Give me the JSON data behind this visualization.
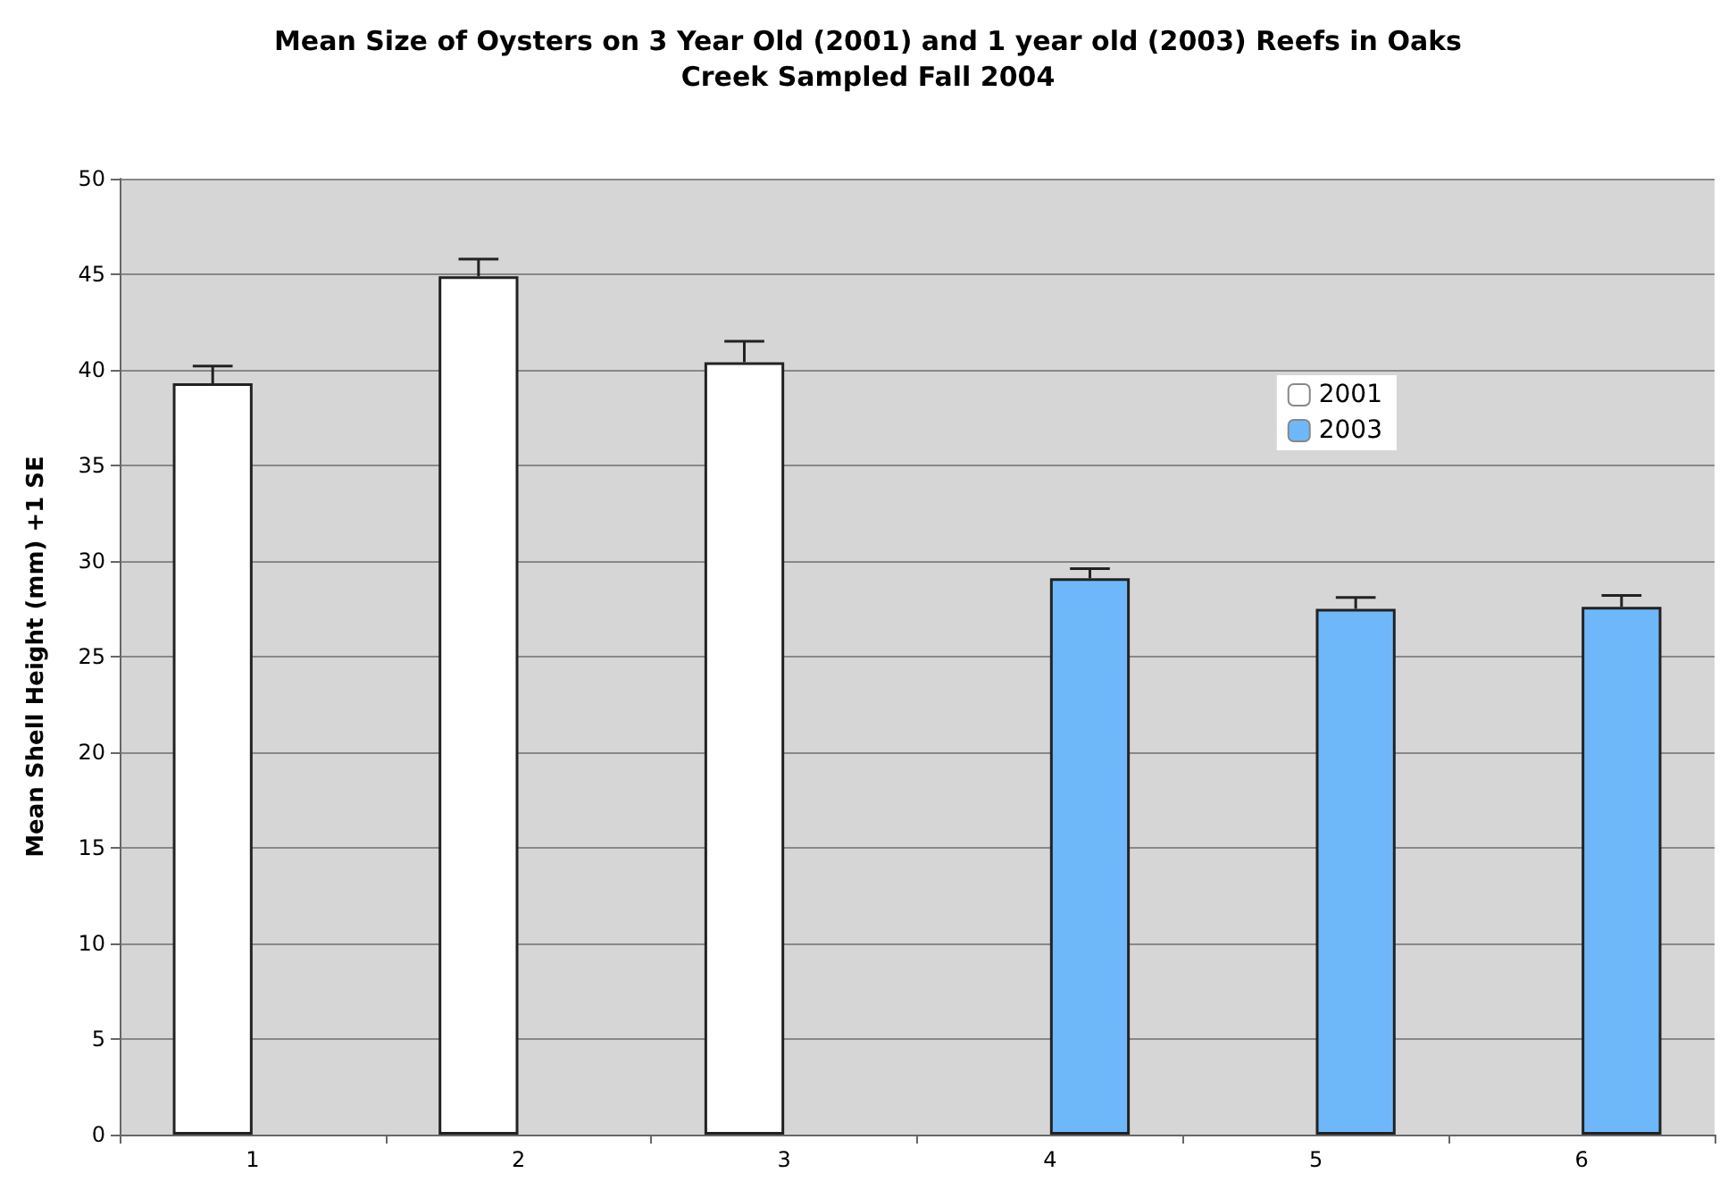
{
  "chart_data": {
    "type": "bar",
    "title": "Mean Size of Oysters on 3 Year Old (2001) and 1 year old (2003) Reefs in Oaks\nCreek Sampled Fall 2004",
    "ylabel": "Mean Shell Height (mm) +1 SE",
    "categories": [
      "1",
      "2",
      "3",
      "4",
      "5",
      "6"
    ],
    "series": [
      {
        "name": "2001",
        "color": "#ffffff",
        "values": [
          39.3,
          44.9,
          40.4,
          null,
          null,
          null
        ],
        "errors": [
          [
            39.3,
            40.2
          ],
          [
            44.9,
            45.8
          ],
          [
            40.4,
            41.5
          ],
          null,
          null,
          null
        ]
      },
      {
        "name": "2003",
        "color": "#6eb8fa",
        "values": [
          null,
          null,
          null,
          29.1,
          27.5,
          27.6
        ],
        "errors": [
          null,
          null,
          null,
          [
            29.1,
            29.6
          ],
          [
            27.5,
            28.1
          ],
          [
            27.6,
            28.2
          ]
        ]
      }
    ],
    "ylim": [
      0,
      50
    ],
    "yticks": [
      0,
      5,
      10,
      15,
      20,
      25,
      30,
      35,
      40,
      45,
      50
    ],
    "grid": "y",
    "legend": "right"
  }
}
